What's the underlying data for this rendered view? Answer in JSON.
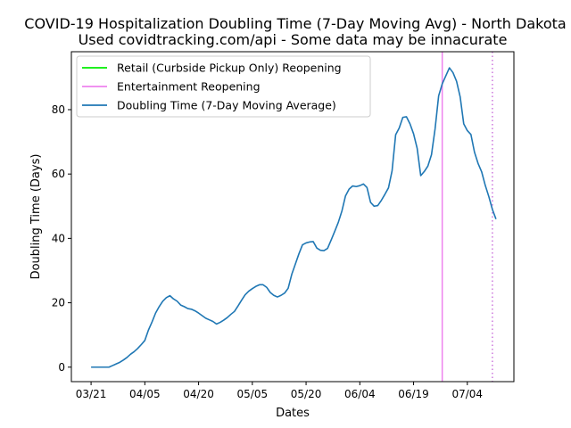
{
  "chart_data": {
    "type": "line",
    "title": "COVID-19 Hospitalization Doubling Time (7-Day Moving Avg) - North Dakota",
    "subtitle": "Used covidtracking.com/api - Some data may be innacurate",
    "xlabel": "Dates",
    "ylabel": "Doubling Time (Days)",
    "x_tick_labels": [
      "03/21",
      "04/05",
      "04/20",
      "05/05",
      "05/20",
      "06/04",
      "06/19",
      "07/04"
    ],
    "x_tick_days": [
      0,
      15,
      30,
      45,
      60,
      75,
      90,
      105
    ],
    "xlim_days": [
      -5.5,
      118
    ],
    "ylim": [
      -4.5,
      98
    ],
    "y_ticks": [
      0,
      20,
      40,
      60,
      80
    ],
    "grid": false,
    "legend_position": "upper-left",
    "legend": [
      {
        "label": "Retail (Curbside Pickup Only) Reopening",
        "color": "#00ee00"
      },
      {
        "label": "Entertainment Reopening",
        "color": "#ee82ee"
      },
      {
        "label": "Doubling Time (7-Day Moving Average)",
        "color": "#1f77b4"
      }
    ],
    "vlines": [
      {
        "name": "Entertainment Reopening",
        "day": 98,
        "color": "#ee82ee",
        "style": "solid"
      },
      {
        "name": "Retail (Curbside Pickup Only) Reopening",
        "day": 112,
        "color": "#cc77dd",
        "style": "dotted"
      }
    ],
    "series": [
      {
        "name": "Doubling Time (7-Day Moving Average)",
        "color": "#1f77b4",
        "points": [
          [
            0,
            0
          ],
          [
            1,
            0
          ],
          [
            2,
            0
          ],
          [
            3,
            0
          ],
          [
            4,
            0
          ],
          [
            5,
            0
          ],
          [
            6,
            0.5
          ],
          [
            7,
            1
          ],
          [
            8,
            1.5
          ],
          [
            9,
            2.2
          ],
          [
            10,
            3
          ],
          [
            11,
            4
          ],
          [
            12,
            4.8
          ],
          [
            13,
            5.8
          ],
          [
            14,
            7
          ],
          [
            15,
            8.3
          ],
          [
            16,
            11.5
          ],
          [
            17,
            14
          ],
          [
            18,
            16.8
          ],
          [
            19,
            18.8
          ],
          [
            20,
            20.5
          ],
          [
            21,
            21.6
          ],
          [
            22,
            22.2
          ],
          [
            23,
            21.2
          ],
          [
            24,
            20.5
          ],
          [
            25,
            19.3
          ],
          [
            26,
            18.8
          ],
          [
            27,
            18.2
          ],
          [
            28,
            18
          ],
          [
            29,
            17.5
          ],
          [
            30,
            16.8
          ],
          [
            31,
            16
          ],
          [
            32,
            15.2
          ],
          [
            33,
            14.7
          ],
          [
            34,
            14.2
          ],
          [
            35,
            13.4
          ],
          [
            36,
            13.9
          ],
          [
            37,
            14.6
          ],
          [
            38,
            15.4
          ],
          [
            39,
            16.4
          ],
          [
            40,
            17.3
          ],
          [
            41,
            19
          ],
          [
            42,
            20.8
          ],
          [
            43,
            22.5
          ],
          [
            44,
            23.6
          ],
          [
            45,
            24.4
          ],
          [
            46,
            25.1
          ],
          [
            47,
            25.6
          ],
          [
            48,
            25.6
          ],
          [
            49,
            24.8
          ],
          [
            50,
            23.2
          ],
          [
            51,
            22.3
          ],
          [
            52,
            21.8
          ],
          [
            53,
            22.3
          ],
          [
            54,
            23
          ],
          [
            55,
            24.5
          ],
          [
            56,
            28.8
          ],
          [
            57,
            32
          ],
          [
            58,
            35.2
          ],
          [
            59,
            38
          ],
          [
            60,
            38.6
          ],
          [
            61,
            38.9
          ],
          [
            62,
            39
          ],
          [
            63,
            37
          ],
          [
            64,
            36.3
          ],
          [
            65,
            36.2
          ],
          [
            66,
            36.9
          ],
          [
            67,
            39.5
          ],
          [
            68,
            42.2
          ],
          [
            69,
            45
          ],
          [
            70,
            48.5
          ],
          [
            71,
            53.2
          ],
          [
            72,
            55.3
          ],
          [
            73,
            56.3
          ],
          [
            74,
            56.1
          ],
          [
            75,
            56.4
          ],
          [
            76,
            56.9
          ],
          [
            77,
            55.8
          ],
          [
            78,
            51.2
          ],
          [
            79,
            50
          ],
          [
            80,
            50.2
          ],
          [
            81,
            51.8
          ],
          [
            82,
            53.7
          ],
          [
            83,
            55.7
          ],
          [
            84,
            61
          ],
          [
            85,
            72.2
          ],
          [
            86,
            74.3
          ],
          [
            87,
            77.6
          ],
          [
            88,
            77.8
          ],
          [
            89,
            75.6
          ],
          [
            90,
            72.5
          ],
          [
            91,
            68
          ],
          [
            92,
            59.5
          ],
          [
            93,
            60.8
          ],
          [
            94,
            62.5
          ],
          [
            95,
            66
          ],
          [
            96,
            74
          ],
          [
            97,
            84.3
          ],
          [
            98,
            88
          ],
          [
            99,
            90.5
          ],
          [
            100,
            93
          ],
          [
            101,
            91.5
          ],
          [
            102,
            88.8
          ],
          [
            103,
            84
          ],
          [
            104,
            75.6
          ],
          [
            105,
            73.5
          ],
          [
            106,
            72.3
          ],
          [
            107,
            66.8
          ],
          [
            108,
            63.3
          ],
          [
            109,
            60.7
          ],
          [
            110,
            56.5
          ],
          [
            111,
            53
          ],
          [
            112,
            49
          ],
          [
            113,
            46
          ]
        ]
      }
    ]
  }
}
